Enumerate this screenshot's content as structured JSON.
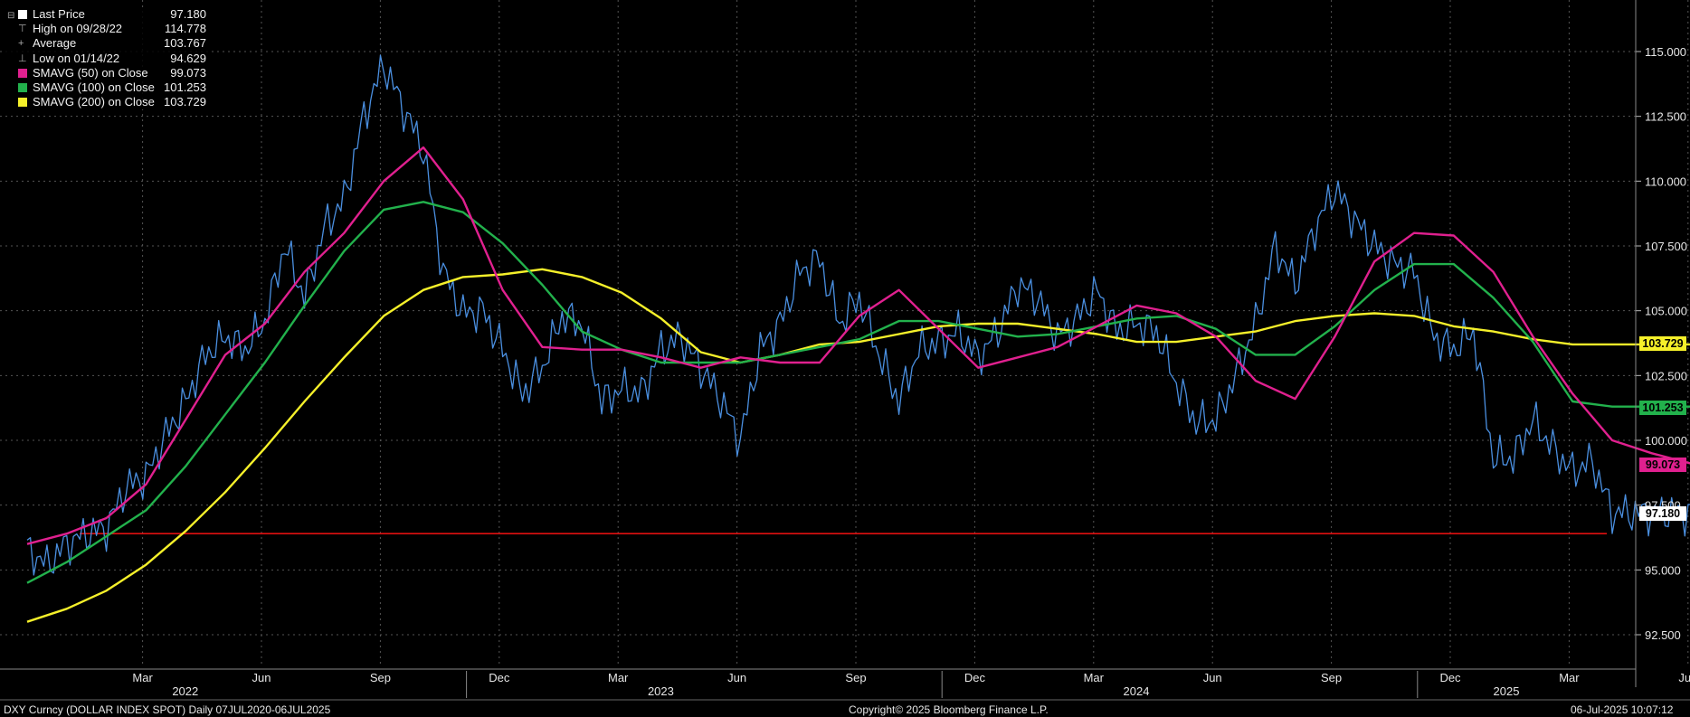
{
  "legend": {
    "rows": [
      {
        "label": "Last Price",
        "value": "97.180",
        "swatch": "#ffffff",
        "mark": ""
      },
      {
        "label": "High on 09/28/22",
        "value": "114.778",
        "swatch": "",
        "mark": "⊤"
      },
      {
        "label": "Average",
        "value": "103.767",
        "swatch": "",
        "mark": "+"
      },
      {
        "label": "Low on 01/14/22",
        "value": "94.629",
        "swatch": "",
        "mark": "⊥"
      },
      {
        "label": "SMAVG (50)  on Close",
        "value": "99.073",
        "swatch": "#e0208f",
        "mark": ""
      },
      {
        "label": "SMAVG (100)  on Close",
        "value": "101.253",
        "swatch": "#22b14c",
        "mark": ""
      },
      {
        "label": "SMAVG (200)  on Close",
        "value": "103.729",
        "swatch": "#f5f02a",
        "mark": ""
      }
    ]
  },
  "price_tags": [
    {
      "text": "103.729",
      "value": 103.729,
      "color": "#f5f02a"
    },
    {
      "text": "101.253",
      "value": 101.253,
      "color": "#22b14c"
    },
    {
      "text": "99.073",
      "value": 99.073,
      "color": "#e0208f"
    },
    {
      "text": "97.180",
      "value": 97.18,
      "color": "#000000"
    }
  ],
  "footer": {
    "left": "DXY Curncy (DOLLAR INDEX SPOT)  Daily 07JUL2020-06JUL2025",
    "center": "Copyright© 2025 Bloomberg Finance L.P.",
    "right": "06-Jul-2025 10:07:12"
  },
  "chart_data": {
    "type": "line",
    "ylim": [
      91.5,
      117.5
    ],
    "y_ticks": [
      "92.500",
      "95.000",
      "97.500",
      "100.000",
      "102.500",
      "105.000",
      "107.500",
      "110.000",
      "112.500",
      "115.000"
    ],
    "y_tick_values": [
      92.5,
      95,
      97.5,
      100,
      102.5,
      105,
      107.5,
      110,
      112.5,
      115
    ],
    "x_tick_labels": [
      "Mar",
      "Jun",
      "Sep",
      "Dec",
      "Mar",
      "Jun",
      "Sep",
      "Dec",
      "Mar",
      "Jun",
      "Sep",
      "Dec",
      "Mar",
      "Jun"
    ],
    "year_labels": [
      "2022",
      "2023",
      "2024",
      "2025"
    ],
    "horizontal_line": {
      "value": 96.4,
      "color": "#e01010"
    },
    "grid": true,
    "legend_position": "top-left",
    "colors": {
      "price": "#4a8fe0",
      "sma50": "#e0208f",
      "sma100": "#22b14c",
      "sma200": "#f5f02a",
      "support": "#e01010"
    },
    "series": [
      {
        "name": "Last Price",
        "x_months": [
          0,
          0.5,
          1,
          1.5,
          2,
          2.5,
          3,
          3.5,
          4,
          4.5,
          5,
          5.5,
          6,
          6.5,
          7,
          7.5,
          8,
          8.5,
          9,
          9.5,
          10,
          10.5,
          11,
          11.5,
          12,
          12.5,
          13,
          13.5,
          14,
          14.5,
          15,
          15.5,
          16,
          16.5,
          17,
          17.5,
          18,
          18.5,
          19,
          19.5,
          20,
          20.5,
          21,
          21.5,
          22,
          22.5,
          23,
          23.5,
          24,
          24.5,
          25,
          25.5,
          26,
          26.5,
          27,
          27.5,
          28,
          28.5,
          29,
          29.5,
          30,
          30.5,
          31,
          31.5,
          32,
          32.5,
          33,
          33.5,
          34,
          34.5,
          35,
          35.5,
          36,
          36.5,
          37,
          37.5,
          38,
          38.5,
          39,
          39.5,
          40,
          40.5,
          41,
          41.5,
          42,
          42.5
        ],
        "values": [
          95.8,
          95.2,
          96.0,
          96.4,
          96.6,
          98.2,
          98.6,
          100.2,
          101.5,
          103.3,
          104.0,
          103.5,
          104.6,
          107.5,
          105.5,
          108.2,
          109.3,
          112.5,
          114.5,
          112.8,
          111.2,
          106.5,
          104.9,
          105.0,
          103.5,
          101.8,
          102.8,
          104.8,
          104.5,
          101.5,
          102.0,
          101.8,
          103.5,
          104.0,
          102.8,
          101.6,
          100.0,
          103.5,
          104.5,
          106.5,
          107.0,
          104.5,
          105.5,
          103.3,
          101.5,
          103.5,
          103.8,
          104.2,
          103.2,
          104.2,
          106.0,
          105.5,
          104.0,
          104.7,
          105.8,
          104.2,
          104.5,
          104.2,
          102.2,
          100.7,
          100.8,
          102.5,
          104.5,
          107.5,
          106.0,
          108.2,
          109.7,
          108.5,
          107.5,
          106.8,
          106.5,
          104.0,
          103.5,
          104.2,
          99.3,
          99.3,
          100.8,
          99.7,
          98.8,
          99.2,
          97.2,
          97.2,
          97.2,
          97.2,
          97.2,
          97.2
        ]
      },
      {
        "name": "SMAVG (50)",
        "x_months": [
          0,
          1,
          2,
          3,
          4,
          5,
          6,
          7,
          8,
          9,
          10,
          11,
          12,
          13,
          14,
          15,
          16,
          17,
          18,
          19,
          20,
          21,
          22,
          23,
          24,
          25,
          26,
          27,
          28,
          29,
          30,
          31,
          32,
          33,
          34,
          35,
          36,
          37,
          38,
          39,
          40,
          41,
          42,
          42.5
        ],
        "values": [
          96.0,
          96.4,
          97.0,
          98.3,
          100.8,
          103.3,
          104.5,
          106.5,
          108.0,
          110.0,
          111.3,
          109.3,
          105.8,
          103.6,
          103.5,
          103.5,
          103.2,
          102.8,
          103.2,
          103.0,
          103.0,
          104.8,
          105.8,
          104.3,
          102.8,
          103.2,
          103.6,
          104.4,
          105.2,
          104.9,
          104.0,
          102.3,
          101.6,
          104.0,
          106.9,
          108.0,
          107.9,
          106.5,
          104.0,
          101.8,
          100.0,
          99.5,
          99.1,
          99.1
        ]
      },
      {
        "name": "SMAVG (100)",
        "x_months": [
          0,
          1,
          2,
          3,
          4,
          5,
          6,
          7,
          8,
          9,
          10,
          11,
          12,
          13,
          14,
          15,
          16,
          17,
          18,
          19,
          20,
          21,
          22,
          23,
          24,
          25,
          26,
          27,
          28,
          29,
          30,
          31,
          32,
          33,
          34,
          35,
          36,
          37,
          38,
          39,
          40,
          41,
          42,
          42.5
        ],
        "values": [
          94.5,
          95.3,
          96.3,
          97.3,
          99.0,
          101.0,
          103.0,
          105.2,
          107.3,
          108.9,
          109.2,
          108.8,
          107.6,
          106.0,
          104.2,
          103.5,
          103.0,
          103.0,
          103.0,
          103.3,
          103.6,
          103.9,
          104.6,
          104.6,
          104.3,
          104.0,
          104.1,
          104.4,
          104.7,
          104.8,
          104.3,
          103.3,
          103.3,
          104.4,
          105.8,
          106.8,
          106.8,
          105.5,
          103.8,
          101.5,
          101.3,
          101.3,
          101.3,
          101.3
        ]
      },
      {
        "name": "SMAVG (200)",
        "x_months": [
          0,
          1,
          2,
          3,
          4,
          5,
          6,
          7,
          8,
          9,
          10,
          11,
          12,
          13,
          14,
          15,
          16,
          17,
          18,
          19,
          20,
          21,
          22,
          23,
          24,
          25,
          26,
          27,
          28,
          29,
          30,
          31,
          32,
          33,
          34,
          35,
          36,
          37,
          38,
          39,
          40,
          41,
          42,
          42.5
        ],
        "values": [
          93.0,
          93.5,
          94.2,
          95.2,
          96.5,
          98.0,
          99.7,
          101.5,
          103.2,
          104.8,
          105.8,
          106.3,
          106.4,
          106.6,
          106.3,
          105.7,
          104.7,
          103.4,
          103.0,
          103.3,
          103.7,
          103.8,
          104.1,
          104.4,
          104.5,
          104.5,
          104.3,
          104.1,
          103.8,
          103.8,
          104.0,
          104.2,
          104.6,
          104.8,
          104.9,
          104.8,
          104.4,
          104.2,
          103.9,
          103.7,
          103.7,
          103.7,
          103.7,
          103.7
        ]
      }
    ]
  }
}
